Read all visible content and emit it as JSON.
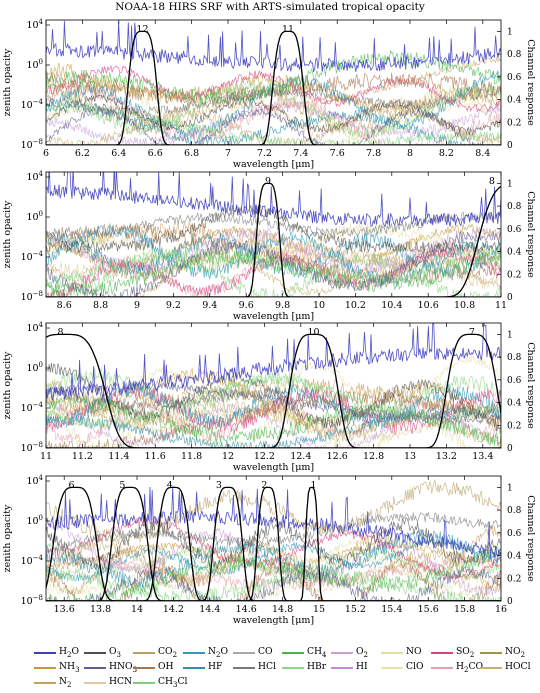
{
  "title": "NOAA-18 HIRS SRF with ARTS-simulated tropical opacity",
  "chart_data": [
    {
      "type": "line",
      "xlabel": "wavelength [μm]",
      "ylabel": "zenith opacity",
      "y2label": "Channel response",
      "xlim": [
        6,
        8.5
      ],
      "xticks": [
        "6",
        "6.2",
        "6.4",
        "6.6",
        "6.8",
        "7",
        "7.2",
        "7.4",
        "7.6",
        "7.8",
        "8",
        "8.2",
        "8.4"
      ],
      "xtick_values": [
        6,
        6.2,
        6.4,
        6.6,
        6.8,
        7,
        7.2,
        7.4,
        7.6,
        7.8,
        8,
        8.2,
        8.4
      ],
      "ylim_log10": [
        -8,
        4.5
      ],
      "yticks": [
        "10−8",
        "10−4",
        "100",
        "104"
      ],
      "ytick_exponents": [
        -8,
        -4,
        0,
        4
      ],
      "y2lim": [
        0,
        1.1
      ],
      "y2ticks": [
        "0",
        "0.2",
        "0.4",
        "0.6",
        "0.8",
        "1"
      ],
      "y2tick_values": [
        0,
        0.2,
        0.4,
        0.6,
        0.8,
        1
      ],
      "channels": [
        {
          "label": "12",
          "center": 6.53,
          "fwhm": 0.16,
          "label_x": 6.53
        },
        {
          "label": "11",
          "center": 7.33,
          "fwhm": 0.17,
          "label_x": 7.33
        }
      ]
    },
    {
      "type": "line",
      "xlabel": "wavelength [μm]",
      "ylabel": "zenith opacity",
      "y2label": "Channel response",
      "xlim": [
        8.5,
        11
      ],
      "xticks": [
        "8.6",
        "8.8",
        "9",
        "9.2",
        "9.4",
        "9.6",
        "9.8",
        "10",
        "10.2",
        "10.4",
        "10.6",
        "10.8",
        "11"
      ],
      "xtick_values": [
        8.6,
        8.8,
        9,
        9.2,
        9.4,
        9.6,
        9.8,
        10,
        10.2,
        10.4,
        10.6,
        10.8,
        11
      ],
      "ylim_log10": [
        -8,
        4.5
      ],
      "yticks": [
        "10−8",
        "10−4",
        "100",
        "104"
      ],
      "ytick_exponents": [
        -8,
        -4,
        0,
        4
      ],
      "y2lim": [
        0,
        1.1
      ],
      "y2ticks": [
        "0",
        "0.2",
        "0.4",
        "0.6",
        "0.8",
        "1"
      ],
      "y2tick_values": [
        0,
        0.2,
        0.4,
        0.6,
        0.8,
        1
      ],
      "channels": [
        {
          "label": "9",
          "center": 9.72,
          "fwhm": 0.13,
          "label_x": 9.72
        },
        {
          "label": "8",
          "center": 11.1,
          "fwhm": 0.45,
          "label_x": 10.95
        }
      ]
    },
    {
      "type": "line",
      "xlabel": "wavelength [μm]",
      "ylabel": "zenith opacity",
      "y2label": "Channel response",
      "xlim": [
        11,
        13.5
      ],
      "xticks": [
        "11",
        "11.2",
        "11.4",
        "11.6",
        "11.8",
        "12",
        "12.2",
        "12.4",
        "12.6",
        "12.8",
        "13",
        "13.2",
        "13.4"
      ],
      "xtick_values": [
        11,
        11.2,
        11.4,
        11.6,
        11.8,
        12,
        12.2,
        12.4,
        12.6,
        12.8,
        13,
        13.2,
        13.4
      ],
      "ylim_log10": [
        -8,
        4.5
      ],
      "yticks": [
        "10−8",
        "10−4",
        "100",
        "104"
      ],
      "ytick_exponents": [
        -8,
        -4,
        0,
        4
      ],
      "y2lim": [
        0,
        1.1
      ],
      "y2ticks": [
        "0",
        "0.2",
        "0.4",
        "0.6",
        "0.8",
        "1"
      ],
      "y2tick_values": [
        0,
        0.2,
        0.4,
        0.6,
        0.8,
        1
      ],
      "channels": [
        {
          "label": "8",
          "center": 11.1,
          "fwhm": 0.45,
          "label_x": 11.08
        },
        {
          "label": "10",
          "center": 12.47,
          "fwhm": 0.27,
          "label_x": 12.47
        },
        {
          "label": "7",
          "center": 13.34,
          "fwhm": 0.28,
          "label_x": 13.34
        }
      ]
    },
    {
      "type": "line",
      "xlabel": "wavelength [μm]",
      "ylabel": "zenith opacity",
      "y2label": "Channel response",
      "xlim": [
        13.5,
        16
      ],
      "xticks": [
        "13.6",
        "13.8",
        "14",
        "14.2",
        "14.4",
        "14.6",
        "14.8",
        "15",
        "15.2",
        "15.4",
        "15.6",
        "15.8",
        "16"
      ],
      "xtick_values": [
        13.6,
        13.8,
        14,
        14.2,
        14.4,
        14.6,
        14.8,
        15,
        15.2,
        15.4,
        15.6,
        15.8,
        16
      ],
      "ylim_log10": [
        -8,
        4.5
      ],
      "yticks": [
        "10−8",
        "10−4",
        "100",
        "104"
      ],
      "ytick_exponents": [
        -8,
        -4,
        0,
        4
      ],
      "y2lim": [
        0,
        1.1
      ],
      "y2ticks": [
        "0",
        "0.2",
        "0.4",
        "0.6",
        "0.8",
        "1"
      ],
      "y2tick_values": [
        0,
        0.2,
        0.4,
        0.6,
        0.8,
        1
      ],
      "channels": [
        {
          "label": "6",
          "center": 13.66,
          "fwhm": 0.24,
          "label_x": 13.64
        },
        {
          "label": "5",
          "center": 13.96,
          "fwhm": 0.2,
          "label_x": 13.92
        },
        {
          "label": "4",
          "center": 14.2,
          "fwhm": 0.18,
          "label_x": 14.18
        },
        {
          "label": "3",
          "center": 14.5,
          "fwhm": 0.16,
          "label_x": 14.45
        },
        {
          "label": "2",
          "center": 14.72,
          "fwhm": 0.12,
          "label_x": 14.7
        },
        {
          "label": "1",
          "center": 14.96,
          "fwhm": 0.07,
          "label_x": 14.97
        }
      ]
    }
  ],
  "legend": [
    {
      "label": "H2O",
      "sub": "2",
      "base": "H",
      "tail": "O",
      "color": "#3f3fbf"
    },
    {
      "label": "O3",
      "sub": "3",
      "base": "O",
      "tail": "",
      "color": "#505050"
    },
    {
      "label": "CO2",
      "sub": "2",
      "base": "CO",
      "tail": "",
      "color": "#b8a064"
    },
    {
      "label": "N2O",
      "sub": "2",
      "base": "N",
      "tail": "O",
      "color": "#2f97b8"
    },
    {
      "label": "CO",
      "sub": "",
      "base": "CO",
      "tail": "",
      "color": "#a7a7a7"
    },
    {
      "label": "CH4",
      "sub": "4",
      "base": "CH",
      "tail": "",
      "color": "#47b54a"
    },
    {
      "label": "O2",
      "sub": "2",
      "base": "O",
      "tail": "",
      "color": "#c9a0d4"
    },
    {
      "label": "NO",
      "sub": "",
      "base": "NO",
      "tail": "",
      "color": "#e3e0a5"
    },
    {
      "label": "SO2",
      "sub": "2",
      "base": "SO",
      "tail": "",
      "color": "#d6427f"
    },
    {
      "label": "NO2",
      "sub": "2",
      "base": "NO",
      "tail": "",
      "color": "#9a9a3d"
    },
    {
      "label": "NH3",
      "sub": "3",
      "base": "NH",
      "tail": "",
      "color": "#c8963c"
    },
    {
      "label": "HNO3",
      "sub": "3",
      "base": "HNO",
      "tail": "",
      "color": "#606090"
    },
    {
      "label": "OH",
      "sub": "",
      "base": "OH",
      "tail": "",
      "color": "#a67451"
    },
    {
      "label": "HF",
      "sub": "",
      "base": "HF",
      "tail": "",
      "color": "#2f8fa8"
    },
    {
      "label": "HCl",
      "sub": "",
      "base": "HCl",
      "tail": "",
      "color": "#7a7a7a"
    },
    {
      "label": "HBr",
      "sub": "",
      "base": "HBr",
      "tail": "",
      "color": "#8fd48a"
    },
    {
      "label": "HI",
      "sub": "",
      "base": "HI",
      "tail": "",
      "color": "#c090d0"
    },
    {
      "label": "ClO",
      "sub": "",
      "base": "ClO",
      "tail": "",
      "color": "#e8e2b0"
    },
    {
      "label": "H2CO",
      "sub": "2",
      "base": "H",
      "tail": "CO",
      "color": "#e8a0b0"
    },
    {
      "label": "HOCl",
      "sub": "",
      "base": "HOCl",
      "tail": "",
      "color": "#c8b070"
    },
    {
      "label": "N2",
      "sub": "2",
      "base": "N",
      "tail": "",
      "color": "#c8a060"
    },
    {
      "label": "HCN",
      "sub": "",
      "base": "HCN",
      "tail": "",
      "color": "#e0c8a0"
    },
    {
      "label": "CH3Cl",
      "sub": "3",
      "base": "CH",
      "tail": "Cl",
      "color": "#7fcf7f"
    }
  ]
}
